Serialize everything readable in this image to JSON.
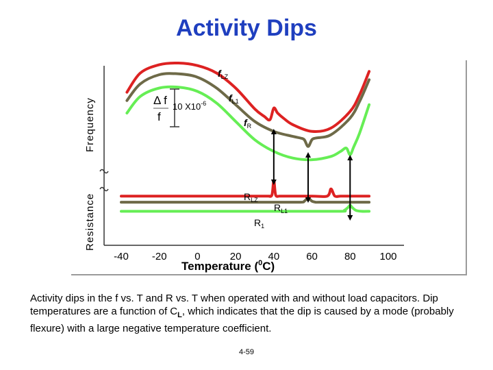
{
  "title": "Activity Dips",
  "caption": {
    "part1": "Activity dips in the f vs. T and R vs. T when operated with and without load capacitors.  Dip temperatures are a function of C",
    "sub": "L",
    "part2": ", which indicates that the dip is caused by a mode (probably flexure) with a large negative temperature coefficient."
  },
  "page_number": "4-59",
  "colors": {
    "fLZ": "#dd2222",
    "fL1": "#6e6a48",
    "fR": "#66ee55",
    "arrow": "#000000",
    "axis": "#333333"
  },
  "chart_data": {
    "type": "line",
    "xlabel": "Temperature (⁰C)",
    "xlabel_parts": {
      "text": "Temperature (",
      "sup": "0",
      "end": "C)"
    },
    "xticks": [
      "-40",
      "-20",
      "0",
      "20",
      "40",
      "60",
      "80",
      "100"
    ],
    "xlim": [
      -40,
      100
    ],
    "upper_panel": {
      "ylabel": "Frequency",
      "scale_bar": {
        "delta": "Δ f",
        "over": "f",
        "value": "10 X10",
        "exp": "-6"
      },
      "series": [
        {
          "name": "f",
          "sub": "LZ",
          "color": "#dd2222",
          "x": [
            -37,
            -30,
            -20,
            -10,
            0,
            10,
            20,
            30,
            35,
            38,
            40,
            42,
            45,
            50,
            60,
            70,
            80,
            85,
            90
          ],
          "y": [
            0.35,
            0.12,
            0.02,
            0.0,
            0.03,
            0.12,
            0.3,
            0.55,
            0.64,
            0.68,
            0.54,
            0.6,
            0.66,
            0.74,
            0.82,
            0.78,
            0.58,
            0.38,
            0.1
          ]
        },
        {
          "name": "f",
          "sub": "L1",
          "color": "#6e6a48",
          "x": [
            -37,
            -30,
            -20,
            -10,
            0,
            10,
            20,
            30,
            40,
            50,
            54,
            56,
            58,
            60,
            62,
            70,
            80,
            85,
            90
          ],
          "y": [
            0.45,
            0.25,
            0.14,
            0.13,
            0.17,
            0.3,
            0.5,
            0.7,
            0.82,
            0.88,
            0.9,
            0.92,
            1.0,
            0.92,
            0.9,
            0.86,
            0.66,
            0.46,
            0.2
          ]
        },
        {
          "name": "f",
          "sub": "R",
          "color": "#66ee55",
          "x": [
            -37,
            -30,
            -20,
            -10,
            0,
            10,
            20,
            30,
            40,
            50,
            60,
            70,
            75,
            78,
            80,
            82,
            85,
            90
          ],
          "y": [
            0.6,
            0.4,
            0.3,
            0.29,
            0.34,
            0.48,
            0.7,
            0.92,
            1.06,
            1.14,
            1.16,
            1.12,
            1.06,
            1.02,
            1.1,
            1.0,
            0.84,
            0.5
          ]
        }
      ]
    },
    "lower_panel": {
      "ylabel": "Resistance",
      "series": [
        {
          "name": "R",
          "sub": "LZ",
          "color": "#dd2222",
          "x": [
            -40,
            0,
            35,
            37,
            39,
            40,
            41,
            43,
            45,
            60,
            68,
            70,
            72,
            75,
            80,
            90
          ],
          "y": [
            0.3,
            0.3,
            0.3,
            0.3,
            0.28,
            0.0,
            0.28,
            0.3,
            0.3,
            0.3,
            0.3,
            0.16,
            0.3,
            0.3,
            0.3,
            0.3
          ]
        },
        {
          "name": "R",
          "sub": "L1",
          "color": "#6e6a48",
          "x": [
            -40,
            0,
            40,
            54,
            56,
            58,
            60,
            62,
            64,
            80,
            90
          ],
          "y": [
            0.42,
            0.42,
            0.42,
            0.42,
            0.4,
            0.34,
            0.4,
            0.42,
            0.42,
            0.42,
            0.42
          ]
        },
        {
          "name": "R",
          "sub": "1",
          "color": "#66ee55",
          "x": [
            -40,
            0,
            40,
            74,
            77,
            79,
            80,
            81,
            83,
            86,
            90
          ],
          "y": [
            0.6,
            0.6,
            0.6,
            0.6,
            0.58,
            0.52,
            0.48,
            0.52,
            0.58,
            0.6,
            0.6
          ]
        }
      ]
    },
    "annotations": [
      {
        "type": "double-arrow",
        "x": 40
      },
      {
        "type": "double-arrow",
        "x": 58
      },
      {
        "type": "double-arrow",
        "x": 80
      }
    ]
  }
}
